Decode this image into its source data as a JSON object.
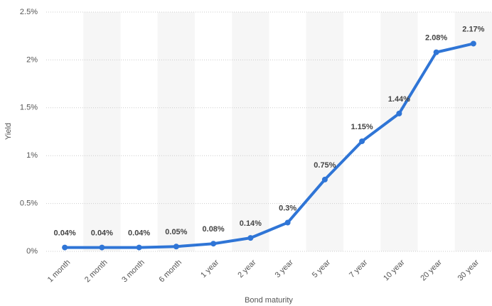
{
  "chart_data": {
    "type": "line",
    "x_label": "Bond maturity",
    "y_label": "Yield",
    "categories": [
      "1 month",
      "2 month",
      "3 month",
      "6 month",
      "1 year",
      "2 year",
      "3 year",
      "5 year",
      "7 year",
      "10 year",
      "20 year",
      "30 year"
    ],
    "values": [
      0.04,
      0.04,
      0.04,
      0.05,
      0.08,
      0.14,
      0.3,
      0.75,
      1.15,
      1.44,
      2.08,
      2.17
    ],
    "value_labels": [
      "0.04%",
      "0.04%",
      "0.04%",
      "0.05%",
      "0.08%",
      "0.14%",
      "0.3%",
      "0.75%",
      "1.15%",
      "1.44%",
      "2.08%",
      "2.17%"
    ],
    "color": "#2f75d6",
    "ylim": [
      0,
      2.5
    ],
    "yticks": [
      {
        "value": 0,
        "label": "0%"
      },
      {
        "value": 0.5,
        "label": "0.5%"
      },
      {
        "value": 1,
        "label": "1%"
      },
      {
        "value": 1.5,
        "label": "1.5%"
      },
      {
        "value": 2,
        "label": "2%"
      },
      {
        "value": 2.5,
        "label": "2.5%"
      }
    ],
    "grid": true
  }
}
